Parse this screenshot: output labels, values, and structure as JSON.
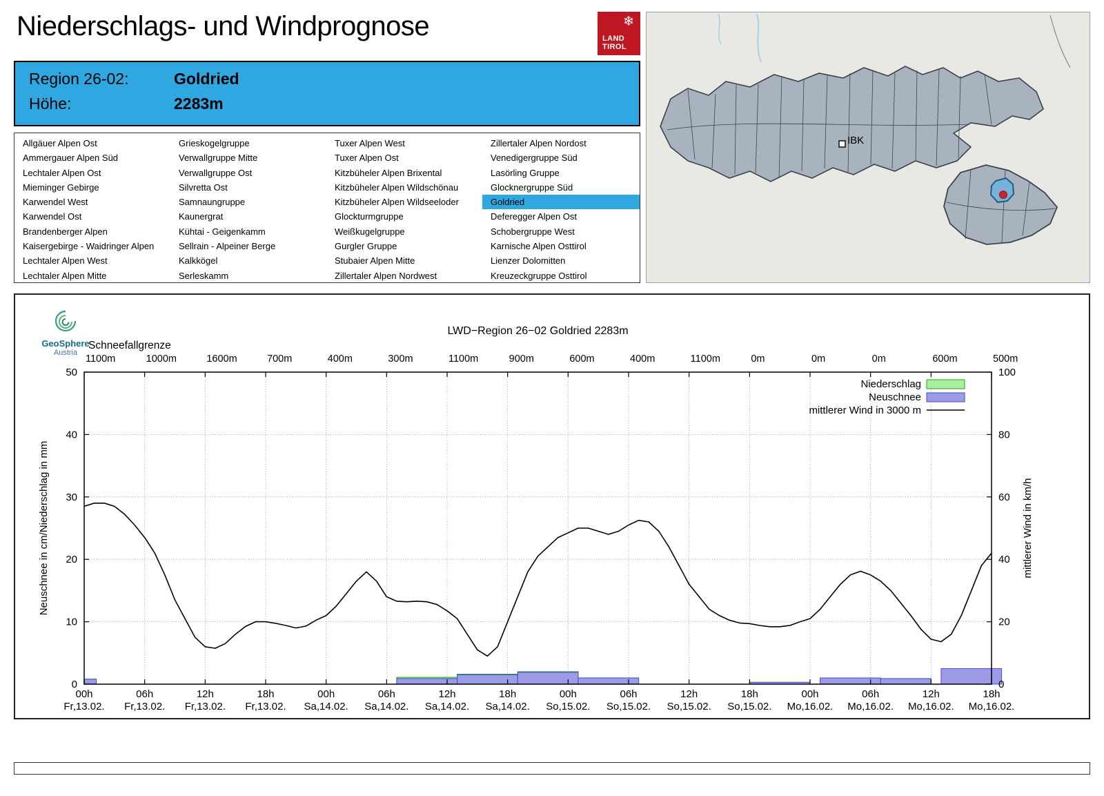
{
  "header": {
    "title": "Niederschlags- und Windprognose",
    "logo_line1": "LAND",
    "logo_line2": "TIROL",
    "logo_color": "#BE1622"
  },
  "region_info": {
    "region_label": "Region 26-02:",
    "region_value": "Goldried",
    "elevation_label": "Höhe:",
    "elevation_value": "2283m",
    "accent_color": "#2FA8E1"
  },
  "region_list": {
    "selected": "Goldried",
    "columns": [
      [
        "Allgäuer Alpen Ost",
        "Ammergauer Alpen Süd",
        "Lechtaler Alpen Ost",
        "Mieminger Gebirge",
        "Karwendel West",
        "Karwendel Ost",
        "Brandenberger Alpen",
        "Kaisergebirge - Waidringer Alpen",
        "Lechtaler Alpen West",
        "Lechtaler Alpen Mitte"
      ],
      [
        "Grieskogelgruppe",
        "Verwallgruppe Mitte",
        "Verwallgruppe Ost",
        "Silvretta Ost",
        "Samnaungruppe",
        "Kaunergrat",
        "Kühtai - Geigenkamm",
        "Sellrain - Alpeiner Berge",
        "Kalkkögel",
        "Serleskamm"
      ],
      [
        "Tuxer Alpen West",
        "Tuxer Alpen Ost",
        "Kitzbüheler Alpen Brixental",
        "Kitzbüheler Alpen Wildschönau",
        "Kitzbüheler Alpen Wildseeloder",
        "Glockturmgruppe",
        "Weißkugelgruppe",
        "Gurgler Gruppe",
        "Stubaier Alpen Mitte",
        "Zillertaler Alpen Nordwest"
      ],
      [
        "Zillertaler Alpen Nordost",
        "Venedigergruppe Süd",
        "Lasörling Gruppe",
        "Glocknergruppe Süd",
        "Goldried",
        "Deferegger Alpen Ost",
        "Schobergruppe West",
        "Karnische Alpen Osttirol",
        "Lienzer Dolomitten",
        "Kreuzeckgruppe Osttirol"
      ]
    ]
  },
  "map": {
    "city_label": "IBK",
    "region_fill": "#A9B3BE",
    "highlight_fill": "#79B2D8",
    "marker_color": "#C9252C"
  },
  "branding": {
    "name": "GeoSphere",
    "country": "Austria"
  },
  "chart_data": {
    "type": "line+bar",
    "title": "LWD−Region 26−02 Goldried 2283m",
    "snowline_heading": "Schneefallgrenze",
    "snowline_values": [
      "1100m",
      "1000m",
      "1600m",
      "700m",
      "400m",
      "300m",
      "1100m",
      "900m",
      "600m",
      "400m",
      "1100m",
      "0m",
      "0m",
      "0m",
      "600m",
      "500m"
    ],
    "x_ticks": [
      {
        "time": "00h",
        "day": "Fr,13.02."
      },
      {
        "time": "06h",
        "day": "Fr,13.02."
      },
      {
        "time": "12h",
        "day": "Fr,13.02."
      },
      {
        "time": "18h",
        "day": "Fr,13.02."
      },
      {
        "time": "00h",
        "day": "Sa,14.02."
      },
      {
        "time": "06h",
        "day": "Sa,14.02."
      },
      {
        "time": "12h",
        "day": "Sa,14.02."
      },
      {
        "time": "18h",
        "day": "Sa,14.02."
      },
      {
        "time": "00h",
        "day": "So,15.02."
      },
      {
        "time": "06h",
        "day": "So,15.02."
      },
      {
        "time": "12h",
        "day": "So,15.02."
      },
      {
        "time": "18h",
        "day": "So,15.02."
      },
      {
        "time": "00h",
        "day": "Mo,16.02."
      },
      {
        "time": "06h",
        "day": "Mo,16.02."
      },
      {
        "time": "12h",
        "day": "Mo,16.02."
      },
      {
        "time": "18h",
        "day": "Mo,16.02."
      }
    ],
    "ylabel_left": "Neuschnee in cm/Niederschlag in mm",
    "ylabel_right": "mittlerer Wind in km/h",
    "ylim_left": [
      0,
      50
    ],
    "ylim_right": [
      0,
      100
    ],
    "ytick_step_left": 10,
    "x_range_hours": [
      0,
      90
    ],
    "grid": true,
    "legend_position": "top-right-inside",
    "legend": [
      {
        "label": "Niederschlag",
        "sample": "box",
        "fill": "#A8F0A0",
        "stroke": "#18A818"
      },
      {
        "label": "Neuschnee",
        "sample": "box",
        "fill": "#9B9BE8",
        "stroke": "#4949D2"
      },
      {
        "label": "mittlerer Wind in 3000 m",
        "sample": "line",
        "stroke": "#000000"
      }
    ],
    "wind_line": {
      "name": "mittlerer Wind in 3000 m",
      "axis": "right",
      "unit": "km/h",
      "start_hour": 0,
      "step_hours": 1,
      "values_kmh": [
        57,
        58,
        58,
        57,
        54.5,
        51,
        47,
        42,
        35,
        27,
        21,
        15,
        12,
        11.5,
        13,
        16,
        18.5,
        20,
        20,
        19.5,
        18.8,
        18,
        18.6,
        20.5,
        22,
        25,
        29,
        33,
        36,
        33,
        28,
        26.6,
        26.4,
        26.6,
        26.4,
        25.5,
        23.5,
        21,
        16,
        11,
        9,
        12,
        20,
        28,
        36,
        41,
        44,
        47,
        48.5,
        50,
        50,
        49,
        48,
        49,
        51,
        52.5,
        52,
        49,
        44,
        38,
        32,
        28,
        24,
        22,
        20.5,
        19.6,
        19.4,
        18.8,
        18.4,
        18.4,
        18.8,
        20,
        21,
        24,
        28,
        32,
        35,
        36.2,
        35,
        33,
        30,
        26,
        22,
        17.6,
        14.4,
        13.6,
        16,
        22,
        30,
        38,
        42
      ]
    },
    "bars": [
      {
        "start_hour": 0,
        "width_hours": 1.2,
        "niederschlag_mm": 0.8,
        "neuschnee_cm": 0.8
      },
      {
        "start_hour": 31,
        "width_hours": 6,
        "niederschlag_mm": 1.1,
        "neuschnee_cm": 0.9
      },
      {
        "start_hour": 37,
        "width_hours": 6,
        "niederschlag_mm": 1.6,
        "neuschnee_cm": 1.5
      },
      {
        "start_hour": 43,
        "width_hours": 6,
        "niederschlag_mm": 2.0,
        "neuschnee_cm": 1.9
      },
      {
        "start_hour": 49,
        "width_hours": 6,
        "niederschlag_mm": 1.0,
        "neuschnee_cm": 1.0
      },
      {
        "start_hour": 66,
        "width_hours": 6,
        "niederschlag_mm": 0.3,
        "neuschnee_cm": 0.3
      },
      {
        "start_hour": 73,
        "width_hours": 6,
        "niederschlag_mm": 0,
        "neuschnee_cm": 1.0
      },
      {
        "start_hour": 79,
        "width_hours": 5,
        "niederschlag_mm": 0,
        "neuschnee_cm": 0.9
      },
      {
        "start_hour": 85,
        "width_hours": 6,
        "niederschlag_mm": 0,
        "neuschnee_cm": 2.5
      }
    ]
  }
}
